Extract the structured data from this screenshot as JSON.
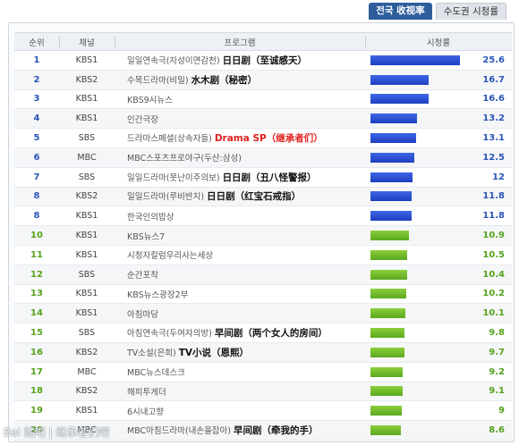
{
  "tabs": [
    {
      "label": "전국 收视率",
      "active": true
    },
    {
      "label": "수도권 시청률",
      "active": false
    }
  ],
  "headers": {
    "rank": "순위",
    "channel": "채널",
    "program": "프로그램",
    "rating": "시청률"
  },
  "bar_max": 25.6,
  "colors": {
    "blue_bar": "#2a4fd0",
    "green_bar": "#6cb52a",
    "tab_active": "#2d5d9b",
    "annotation_red": "#e0201c"
  },
  "rows": [
    {
      "rank": "1",
      "channel": "KBS1",
      "program": "일일연속극(자성이면감천)",
      "note": "日日剧（至诚感天）",
      "rating": "25.6",
      "group": "blue"
    },
    {
      "rank": "2",
      "channel": "KBS2",
      "program": "수목드라마(비밀)",
      "note": "水木剧（秘密）",
      "rating": "16.7",
      "group": "blue"
    },
    {
      "rank": "3",
      "channel": "KBS1",
      "program": "KBS9시뉴스",
      "note": "",
      "rating": "16.6",
      "group": "blue"
    },
    {
      "rank": "4",
      "channel": "KBS1",
      "program": "인간극장",
      "note": "",
      "rating": "13.2",
      "group": "blue"
    },
    {
      "rank": "5",
      "channel": "SBS",
      "program": "드라마스페셜(상속자들)",
      "note": "Drama SP（继承者们）",
      "note_red": true,
      "rating": "13.1",
      "group": "blue"
    },
    {
      "rank": "6",
      "channel": "MBC",
      "program": "MBC스포츠프로야구(두산:삼성)",
      "note": "",
      "rating": "12.5",
      "group": "blue"
    },
    {
      "rank": "7",
      "channel": "SBS",
      "program": "일일드라마(못난이주의보)",
      "note": "日日剧（丑八怪警报）",
      "rating": "12",
      "group": "blue"
    },
    {
      "rank": "8",
      "channel": "KBS2",
      "program": "일일드라마(루비반지)",
      "note": "日日剧（红宝石戒指）",
      "rating": "11.8",
      "group": "blue"
    },
    {
      "rank": "8",
      "channel": "KBS1",
      "program": "한국인의밥상",
      "note": "",
      "rating": "11.8",
      "group": "blue"
    },
    {
      "rank": "10",
      "channel": "KBS1",
      "program": "KBS뉴스7",
      "note": "",
      "rating": "10.9",
      "group": "green"
    },
    {
      "rank": "11",
      "channel": "KBS1",
      "program": "시청자칼럼우리사는세상",
      "note": "",
      "rating": "10.5",
      "group": "green"
    },
    {
      "rank": "12",
      "channel": "SBS",
      "program": "순간포착",
      "note": "",
      "rating": "10.4",
      "group": "green"
    },
    {
      "rank": "13",
      "channel": "KBS1",
      "program": "KBS뉴스광장2부",
      "note": "",
      "rating": "10.2",
      "group": "green"
    },
    {
      "rank": "14",
      "channel": "KBS1",
      "program": "아침마당",
      "note": "",
      "rating": "10.1",
      "group": "green"
    },
    {
      "rank": "15",
      "channel": "SBS",
      "program": "아침연속극(두여자의방)",
      "note": "早间剧（两个女人的房间）",
      "rating": "9.8",
      "group": "green"
    },
    {
      "rank": "16",
      "channel": "KBS2",
      "program": "TV소설(은희)",
      "note": "TV小说（恩熙）",
      "rating": "9.7",
      "group": "green"
    },
    {
      "rank": "17",
      "channel": "MBC",
      "program": "MBC뉴스데스크",
      "note": "",
      "rating": "9.2",
      "group": "green"
    },
    {
      "rank": "18",
      "channel": "KBS2",
      "program": "해피투게더",
      "note": "",
      "rating": "9.1",
      "group": "green"
    },
    {
      "rank": "19",
      "channel": "KBS1",
      "program": "6시내고향",
      "note": "",
      "rating": "9",
      "group": "green"
    },
    {
      "rank": "20",
      "channel": "MBC",
      "program": "MBC아침드라마(내손을잡아)",
      "note": "早间剧（牵我的手）",
      "rating": "8.6",
      "group": "green"
    }
  ],
  "watermark": "Bai 贴吧 | 继承者们吧"
}
